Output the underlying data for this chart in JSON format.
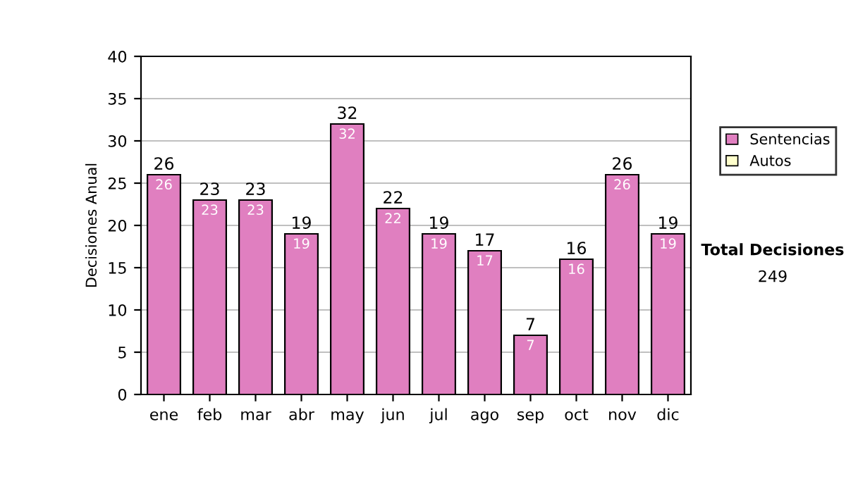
{
  "chart_data": {
    "type": "bar",
    "ylabel": "Decisiones Anual",
    "categories": [
      "ene",
      "feb",
      "mar",
      "abr",
      "may",
      "jun",
      "jul",
      "ago",
      "sep",
      "oct",
      "nov",
      "dic"
    ],
    "series": [
      {
        "name": "Sentencias",
        "color": "#e07fc0",
        "values": [
          26,
          23,
          23,
          19,
          32,
          22,
          19,
          17,
          7,
          16,
          26,
          19
        ]
      },
      {
        "name": "Autos",
        "color": "#ffffcc",
        "values": [
          null,
          null,
          null,
          null,
          null,
          null,
          null,
          null,
          null,
          null,
          null,
          null
        ]
      }
    ],
    "stacked": true,
    "data_labels": true,
    "totals": [
      "26",
      "23",
      "23",
      "19",
      "32",
      "22",
      "19",
      "17",
      "7",
      "16",
      "26",
      "19"
    ],
    "ylim": [
      0,
      40
    ],
    "yticks": [
      0,
      5,
      10,
      15,
      20,
      25,
      30,
      35,
      40
    ],
    "grid": "y",
    "legend": "right",
    "annotations": [
      "Total Decisiones",
      "249"
    ]
  }
}
